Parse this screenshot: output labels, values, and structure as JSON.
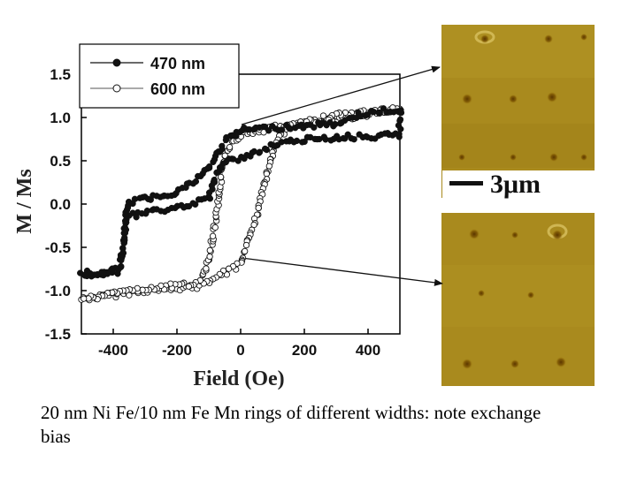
{
  "caption": "20 nm Ni Fe/10 nm Fe Mn rings of different widths: note exchange bias",
  "scale_bar_label": "3μm",
  "chart_data": {
    "type": "line",
    "xlabel": "Field (Oe)",
    "ylabel": "M / Ms",
    "xlim": [
      -500,
      500
    ],
    "ylim": [
      -1.5,
      1.5
    ],
    "xticks": [
      -400,
      -200,
      0,
      200,
      400
    ],
    "yticks": [
      -1.5,
      -1.0,
      -0.5,
      0.0,
      0.5,
      1.0,
      1.5
    ],
    "x_tick_labels": [
      "-400",
      "-200",
      "0",
      "200",
      "400"
    ],
    "y_tick_labels": [
      "-1.5",
      "-1.0",
      "-0.5",
      "0.0",
      "0.5",
      "1.0",
      "1.5"
    ],
    "legend": "top-left",
    "grid": false,
    "series": [
      {
        "name": "470 nm",
        "marker": "filled-circle",
        "color": "#111111",
        "x": [
          -500,
          -430,
          -380,
          -365,
          -360,
          -350,
          -300,
          -200,
          -150,
          -100,
          -50,
          -10,
          0,
          5,
          20,
          100,
          200,
          300,
          330,
          340,
          350,
          360,
          380,
          420,
          500,
          500,
          420,
          300,
          200,
          100,
          0,
          -50,
          -80,
          -100,
          -150,
          -200,
          -250,
          -300,
          -360,
          -370,
          -380,
          -400,
          -430,
          -500
        ],
        "y": [
          -0.82,
          -0.8,
          -0.77,
          -0.4,
          -0.15,
          0.02,
          0.06,
          0.14,
          0.25,
          0.42,
          0.72,
          0.82,
          0.84,
          0.85,
          0.86,
          0.88,
          0.9,
          0.93,
          0.95,
          0.97,
          1.0,
          1.02,
          1.04,
          1.06,
          1.1,
          0.8,
          0.78,
          0.77,
          0.74,
          0.68,
          0.52,
          0.5,
          0.3,
          0.05,
          0.01,
          -0.04,
          -0.08,
          -0.1,
          -0.15,
          -0.5,
          -0.75,
          -0.76,
          -0.78,
          -0.8
        ]
      },
      {
        "name": "600 nm",
        "marker": "open-circle",
        "color": "#111111",
        "x": [
          -500,
          -300,
          -200,
          -140,
          -120,
          -100,
          -90,
          -80,
          -70,
          -60,
          -50,
          -30,
          0,
          100,
          300,
          500,
          500,
          300,
          150,
          130,
          100,
          80,
          60,
          30,
          0,
          -100,
          -300,
          -500
        ],
        "y": [
          -1.1,
          -1.0,
          -0.98,
          -0.95,
          -0.85,
          -0.65,
          -0.45,
          -0.25,
          0.0,
          0.3,
          0.55,
          0.72,
          0.8,
          0.88,
          0.98,
          1.1,
          1.1,
          1.02,
          0.9,
          0.8,
          0.6,
          0.3,
          0.0,
          -0.35,
          -0.7,
          -0.9,
          -0.98,
          -1.1
        ]
      }
    ]
  }
}
